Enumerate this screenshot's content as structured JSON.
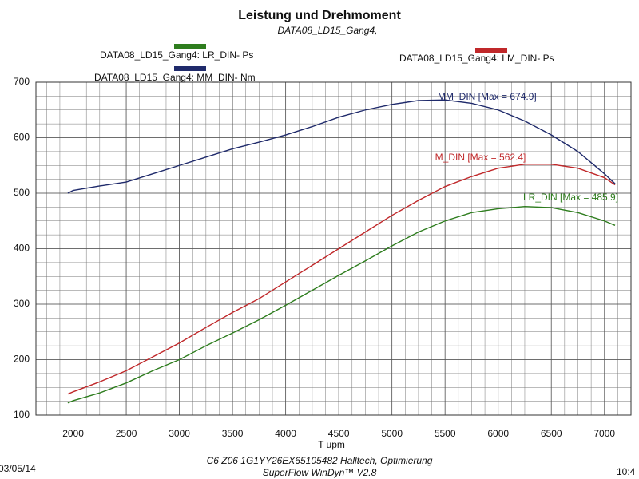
{
  "chart_data": {
    "type": "line",
    "title": "Leistung und Drehmoment",
    "subtitle": "DATA08_LD15_Gang4,",
    "x_label": "T   upm",
    "x": [
      1950,
      2000,
      2250,
      2500,
      2750,
      3000,
      3250,
      3500,
      3750,
      4000,
      4250,
      4500,
      4750,
      5000,
      5250,
      5500,
      5750,
      6000,
      6250,
      6500,
      6750,
      7000,
      7100
    ],
    "series": [
      {
        "name": "DATA08_LD15_Gang4: LR_DIN-  Ps",
        "color": "#2e7d1e",
        "values": [
          122,
          126,
          140,
          158,
          180,
          200,
          225,
          248,
          272,
          298,
          325,
          352,
          378,
          405,
          430,
          450,
          465,
          472,
          476,
          474,
          465,
          450,
          442
        ]
      },
      {
        "name": "DATA08_LD15_Gang4: MM_DIN-  Nm",
        "color": "#1f2a6b",
        "values": [
          500,
          505,
          513,
          520,
          535,
          550,
          565,
          580,
          592,
          605,
          620,
          637,
          650,
          660,
          667,
          668,
          662,
          650,
          630,
          605,
          575,
          535,
          517
        ]
      },
      {
        "name": "DATA08_LD15_Gang4: LM_DIN-  Ps",
        "color": "#c0282a",
        "values": [
          138,
          142,
          160,
          180,
          205,
          230,
          258,
          285,
          310,
          340,
          370,
          400,
          430,
          460,
          487,
          512,
          530,
          545,
          552,
          552,
          545,
          528,
          515
        ]
      }
    ],
    "annotations": [
      "LR_DIN [Max = 485.9]",
      "MM_DIN [Max = 674.9]",
      "LM_DIN [Max = 562.4]"
    ],
    "xlim": [
      1650,
      7250
    ],
    "xticks": [
      2000,
      2500,
      3000,
      3500,
      4000,
      4500,
      5000,
      5500,
      6000,
      6500,
      7000
    ],
    "ylim": [
      100,
      700
    ],
    "yticks": [
      100,
      200,
      300,
      400,
      500,
      600,
      700
    ],
    "grid": true,
    "footer": {
      "date": "03/05/14",
      "vehicle": "C6 Z06 1G1YY26EX65105482 Halltech, Optimierung",
      "software": "SuperFlow WinDyn™ V2.8",
      "time": "10:4"
    }
  }
}
